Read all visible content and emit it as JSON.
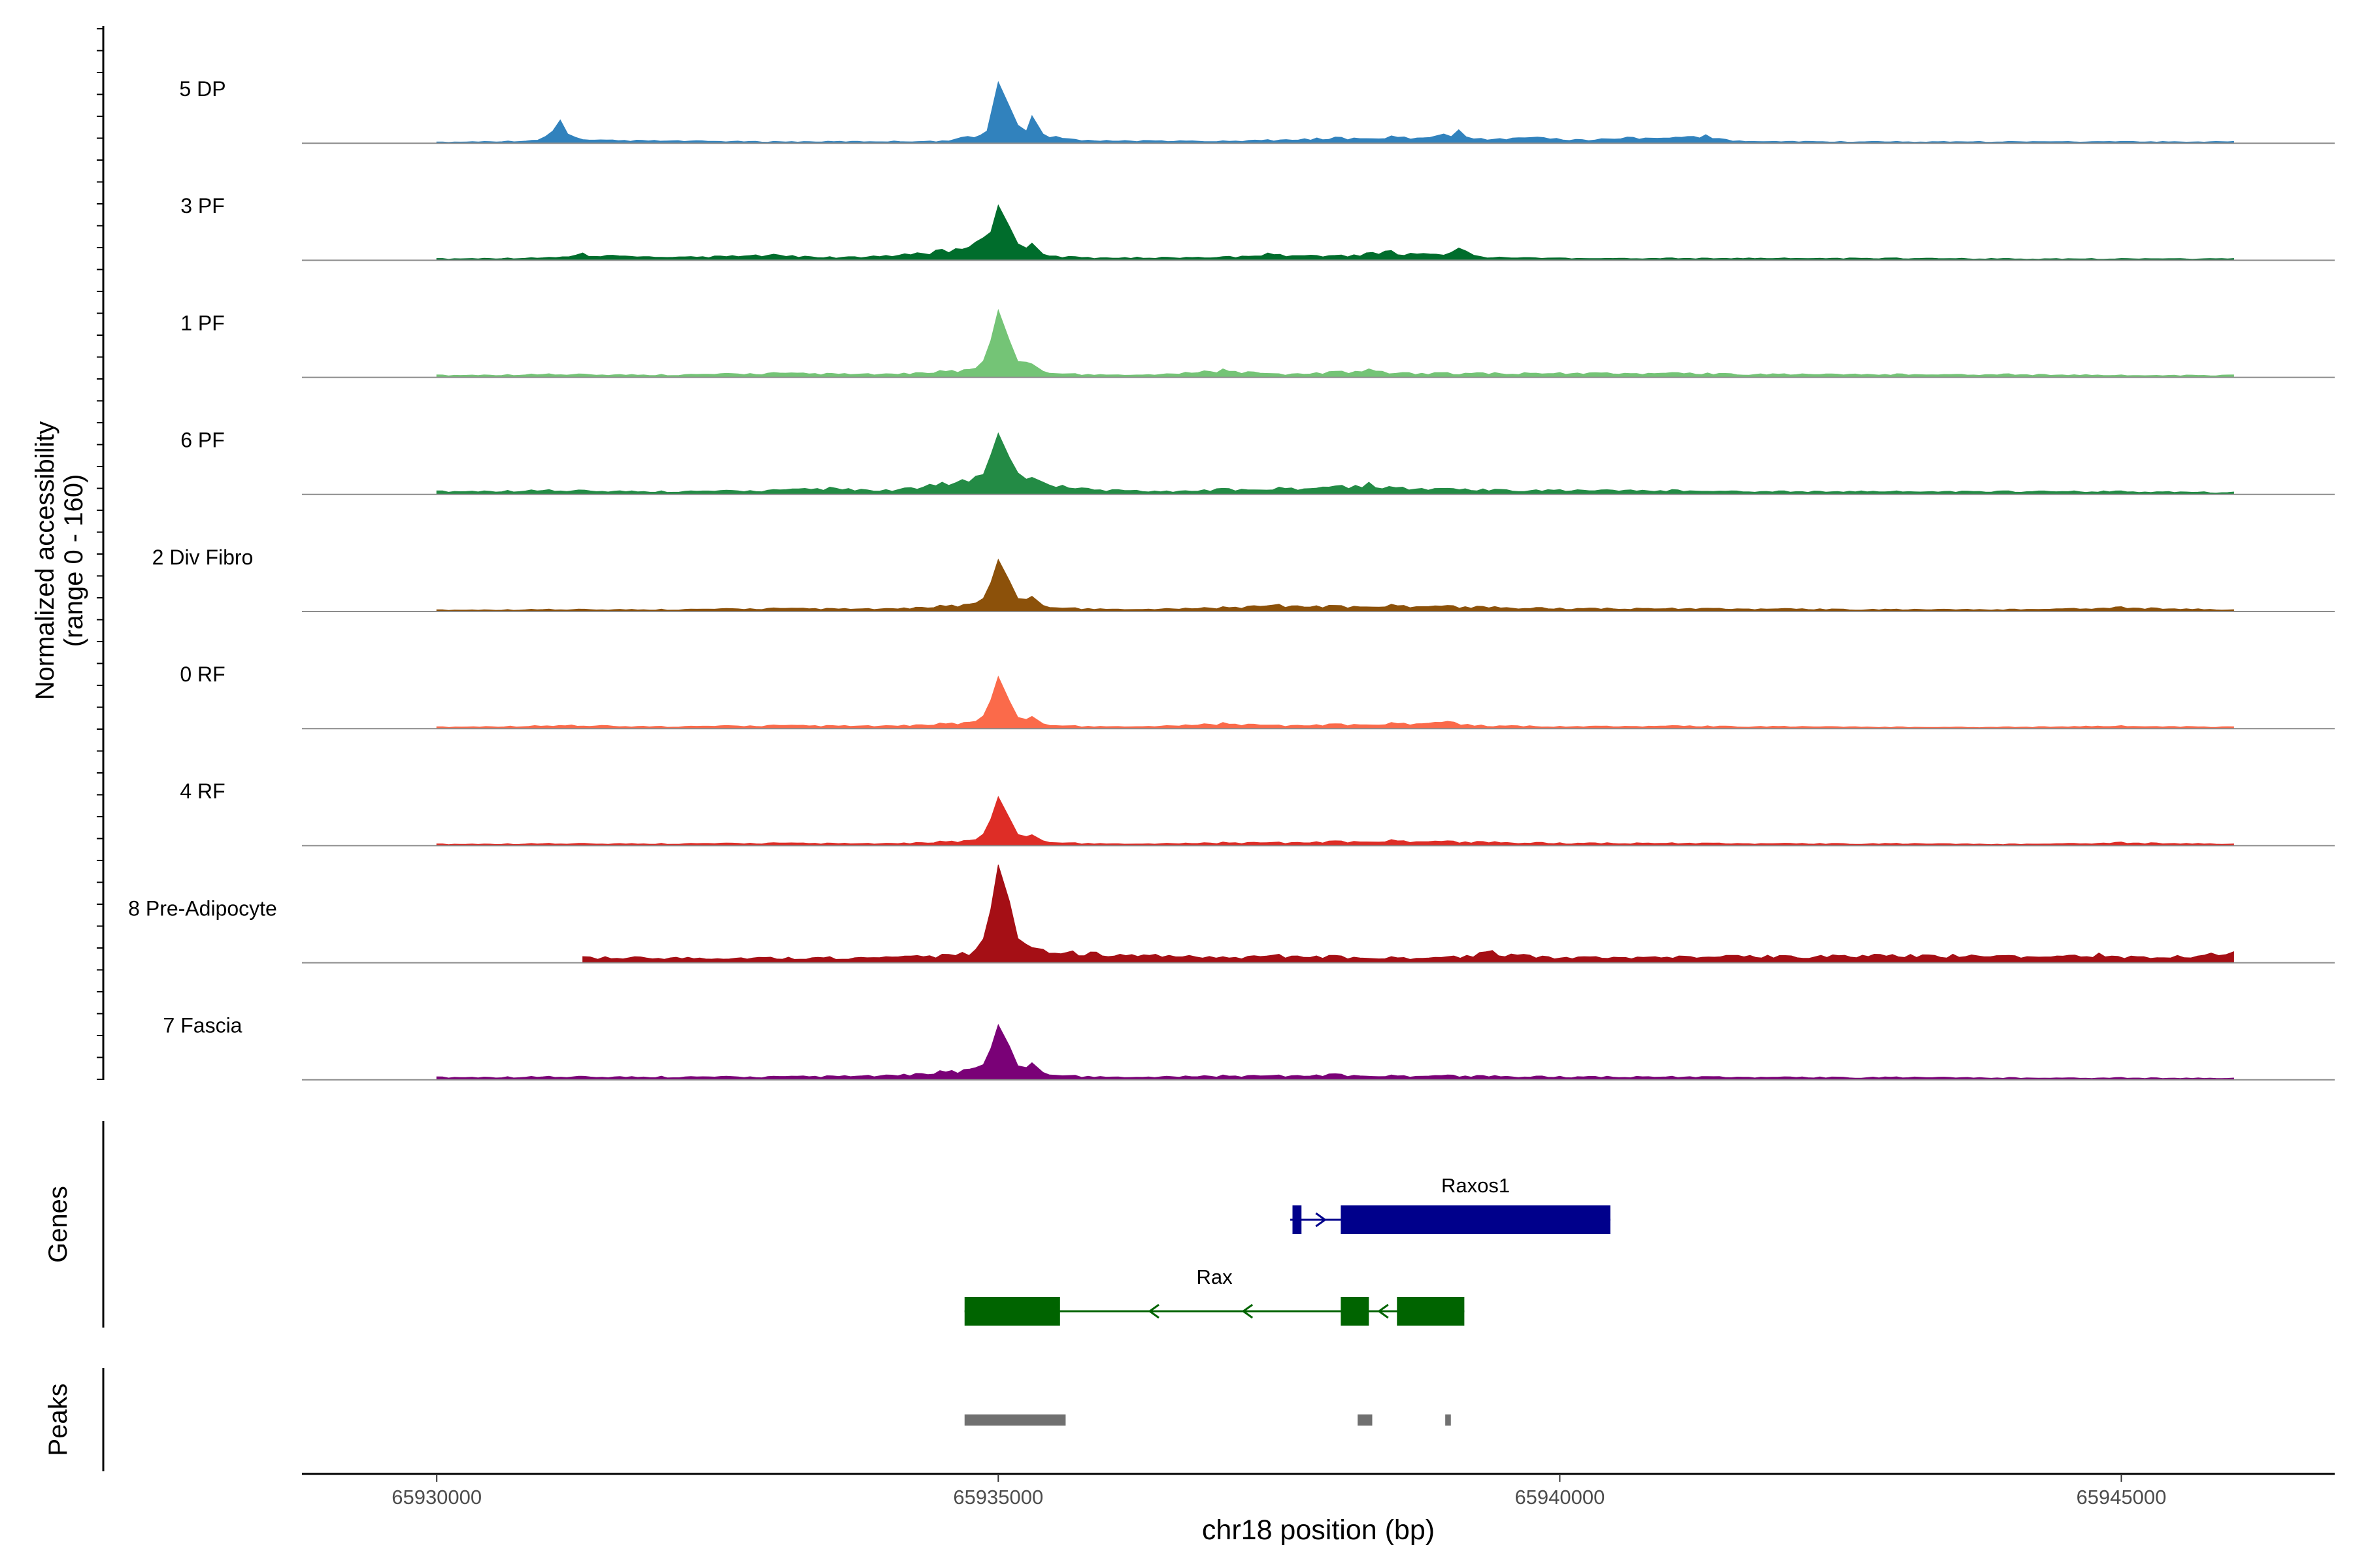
{
  "chart_data": {
    "type": "area",
    "title": "",
    "xlabel": "chr18 position (bp)",
    "ylabel": "Normalized accessibility",
    "ylabel_range": "(range 0 - 160)",
    "ylim": [
      0,
      160
    ],
    "xlim": [
      65928800,
      65946900
    ],
    "x_ticks": [
      65930000,
      65935000,
      65940000,
      65945000
    ],
    "x_tick_labels": [
      "65930000",
      "65935000",
      "65940000",
      "65945000"
    ],
    "series": [
      {
        "name": "5 DP",
        "color": "#3182bd",
        "x": [
          65930000,
          65930900,
          65931100,
          65931300,
          65933000,
          65934500,
          65934900,
          65935000,
          65935100,
          65935250,
          65935300,
          65935400,
          65935800,
          65937000,
          65937400,
          65938000,
          65938500,
          65938900,
          65939100,
          65939300,
          65939800,
          65940200,
          65940600,
          65941300,
          65941600,
          65942500,
          65943000,
          65944000,
          65945000,
          65946000
        ],
        "y": [
          2,
          5,
          38,
          6,
          3,
          4,
          20,
          100,
          60,
          20,
          45,
          15,
          5,
          4,
          6,
          10,
          12,
          12,
          22,
          8,
          10,
          6,
          10,
          14,
          4,
          3,
          3,
          3,
          3,
          3
        ]
      },
      {
        "name": "3 PF",
        "color": "#006d2c",
        "x": [
          65930000,
          65931000,
          65931300,
          65932000,
          65933000,
          65933500,
          65934000,
          65934500,
          65934800,
          65935000,
          65935100,
          65935250,
          65935300,
          65935400,
          65935800,
          65937000,
          65937400,
          65938000,
          65938500,
          65938900,
          65939100,
          65939300,
          65940000,
          65941000,
          65942000,
          65943000,
          65944000,
          65945000,
          65946000
        ],
        "y": [
          3,
          5,
          12,
          5,
          10,
          6,
          8,
          18,
          30,
          90,
          55,
          20,
          28,
          10,
          5,
          6,
          12,
          8,
          16,
          10,
          20,
          6,
          4,
          4,
          4,
          4,
          3,
          3,
          3
        ]
      },
      {
        "name": "1 PF",
        "color": "#74c476",
        "x": [
          65930000,
          65931000,
          65932000,
          65933000,
          65934000,
          65934800,
          65935000,
          65935100,
          65935250,
          65935300,
          65935400,
          65935800,
          65936500,
          65937000,
          65937500,
          65938000,
          65938300,
          65938600,
          65939000,
          65940000,
          65941000,
          65942000,
          65943000,
          65944000,
          65945000,
          65946000
        ],
        "y": [
          4,
          6,
          5,
          8,
          6,
          15,
          110,
          60,
          25,
          22,
          10,
          5,
          6,
          14,
          6,
          10,
          14,
          8,
          8,
          8,
          8,
          6,
          6,
          6,
          4,
          4
        ]
      },
      {
        "name": "6 PF",
        "color": "#238b45",
        "x": [
          65930000,
          65931000,
          65932000,
          65933000,
          65933500,
          65934000,
          65934500,
          65934800,
          65935000,
          65935100,
          65935250,
          65935300,
          65935400,
          65935800,
          65936500,
          65937000,
          65937500,
          65938000,
          65938300,
          65938600,
          65939000,
          65940000,
          65941000,
          65942000,
          65943000,
          65944000,
          65945000,
          65946000
        ],
        "y": [
          6,
          8,
          6,
          8,
          12,
          8,
          20,
          30,
          100,
          60,
          25,
          28,
          20,
          10,
          6,
          10,
          12,
          14,
          20,
          12,
          10,
          8,
          8,
          6,
          6,
          6,
          6,
          4
        ]
      },
      {
        "name": "2 Div Fibro",
        "color": "#8c510a",
        "x": [
          65930000,
          65931000,
          65932000,
          65933000,
          65934000,
          65934800,
          65935000,
          65935100,
          65935250,
          65935300,
          65935400,
          65935800,
          65936500,
          65937000,
          65937500,
          65938000,
          65938500,
          65939000,
          65940000,
          65941000,
          65942000,
          65943000,
          65944000,
          65945000,
          65946000
        ],
        "y": [
          3,
          4,
          4,
          6,
          5,
          14,
          85,
          50,
          20,
          25,
          10,
          5,
          5,
          8,
          12,
          10,
          12,
          10,
          6,
          6,
          5,
          4,
          4,
          8,
          3
        ]
      },
      {
        "name": "0 RF",
        "color": "#fb6a4a",
        "x": [
          65930000,
          65931200,
          65932000,
          65933000,
          65934000,
          65934800,
          65935000,
          65935100,
          65935250,
          65935300,
          65935400,
          65935800,
          65936500,
          65937000,
          65937500,
          65938000,
          65938500,
          65939000,
          65939300,
          65940000,
          65941000,
          65942000,
          65943000,
          65944000,
          65945000,
          65946000
        ],
        "y": [
          3,
          6,
          4,
          6,
          5,
          12,
          85,
          45,
          15,
          20,
          8,
          4,
          5,
          10,
          6,
          8,
          10,
          12,
          6,
          4,
          5,
          4,
          3,
          3,
          5,
          3
        ]
      },
      {
        "name": "4 RF",
        "color": "#de2d26",
        "x": [
          65930000,
          65931000,
          65932000,
          65933000,
          65934000,
          65934800,
          65935000,
          65935100,
          65935250,
          65935300,
          65935400,
          65935800,
          65936500,
          65937000,
          65937500,
          65938000,
          65938500,
          65939000,
          65940000,
          65941000,
          65942000,
          65943000,
          65944000,
          65945000,
          65946000
        ],
        "y": [
          3,
          4,
          4,
          5,
          4,
          10,
          80,
          45,
          15,
          18,
          8,
          4,
          4,
          6,
          6,
          8,
          10,
          8,
          5,
          5,
          4,
          4,
          3,
          6,
          3
        ]
      },
      {
        "name": "8 Pre-Adipocyte",
        "color": "#a50f15",
        "x": [
          65931300,
          65931500,
          65933500,
          65934000,
          65934500,
          65934800,
          65935000,
          65935100,
          65935250,
          65935300,
          65935400,
          65936400,
          65936700,
          65937000,
          65937500,
          65938000,
          65938500,
          65939000,
          65939400,
          65939900,
          65942800,
          65943500,
          65944000,
          65944800,
          65945200,
          65945500,
          65945800,
          65946000
        ],
        "y": [
          10,
          10,
          10,
          10,
          14,
          22,
          160,
          100,
          30,
          25,
          22,
          14,
          12,
          10,
          14,
          12,
          10,
          10,
          20,
          10,
          14,
          14,
          12,
          16,
          10,
          12,
          16,
          18
        ]
      },
      {
        "name": "7 Fascia",
        "color": "#7a0177",
        "x": [
          65930000,
          65931000,
          65932000,
          65933000,
          65934000,
          65934800,
          65935000,
          65935100,
          65935250,
          65935300,
          65935400,
          65935800,
          65936500,
          65937000,
          65937500,
          65938000,
          65938500,
          65939000,
          65940000,
          65941000,
          65942000,
          65943000,
          65944000,
          65945000,
          65946000
        ],
        "y": [
          5,
          6,
          6,
          6,
          8,
          20,
          90,
          55,
          20,
          28,
          12,
          6,
          6,
          8,
          8,
          10,
          8,
          8,
          6,
          6,
          5,
          5,
          4,
          4,
          3
        ]
      }
    ],
    "genes": [
      {
        "name": "Raxos1",
        "color": "#00008b",
        "strand": "+",
        "start": 65937600,
        "end": 65940450,
        "exons": [
          [
            65937620,
            65937700
          ],
          [
            65938050,
            65940450
          ]
        ]
      },
      {
        "name": "Rax",
        "color": "#006400",
        "strand": "-",
        "start": 65934700,
        "end": 65939150,
        "exons": [
          [
            65934700,
            65935550
          ],
          [
            65938050,
            65938300
          ],
          [
            65938550,
            65939150
          ]
        ]
      }
    ],
    "peaks": {
      "color": "#707070",
      "regions": [
        [
          65934700,
          65935600
        ],
        [
          65938200,
          65938330
        ],
        [
          65938980,
          65939030
        ]
      ]
    },
    "panel_labels": {
      "genes": "Genes",
      "peaks": "Peaks"
    }
  }
}
